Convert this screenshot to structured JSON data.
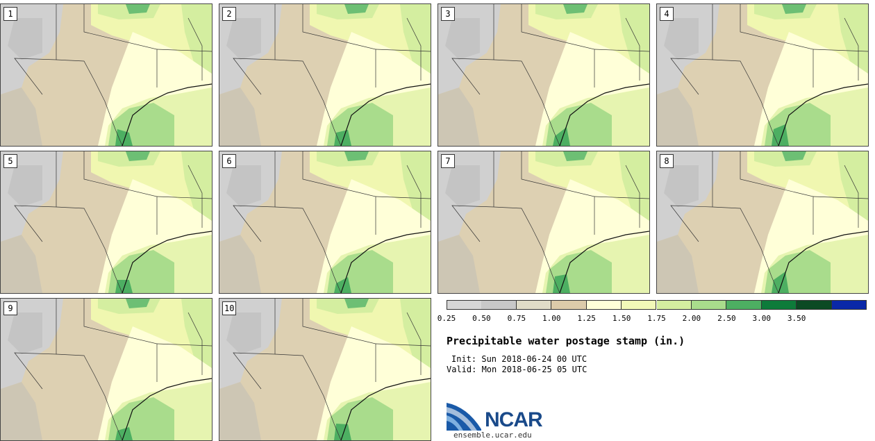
{
  "stamps": [
    {
      "label": "1"
    },
    {
      "label": "2"
    },
    {
      "label": "3"
    },
    {
      "label": "4"
    },
    {
      "label": "5"
    },
    {
      "label": "6"
    },
    {
      "label": "7"
    },
    {
      "label": "8"
    },
    {
      "label": "9"
    },
    {
      "label": "10"
    }
  ],
  "colorbar": {
    "ticks": [
      "0.25",
      "0.50",
      "0.75",
      "1.00",
      "1.25",
      "1.50",
      "1.75",
      "2.00",
      "2.50",
      "3.00",
      "3.50"
    ],
    "colors": [
      "#d6d6d6",
      "#c8c8c8",
      "#e0dcc8",
      "#dccbaa",
      "#ffffd8",
      "#f2f9b8",
      "#d4eea0",
      "#a9dc8c",
      "#4daf62",
      "#0d7b3a",
      "#0b4a24",
      "#0a28a8"
    ]
  },
  "title": "Precipitable water postage stamp (in.)",
  "init": "Init: Sun 2018-06-24 00 UTC",
  "valid": "Valid: Mon 2018-06-25 05 UTC",
  "logo": {
    "text": "NCAR",
    "url": "ensemble.ucar.edu"
  }
}
